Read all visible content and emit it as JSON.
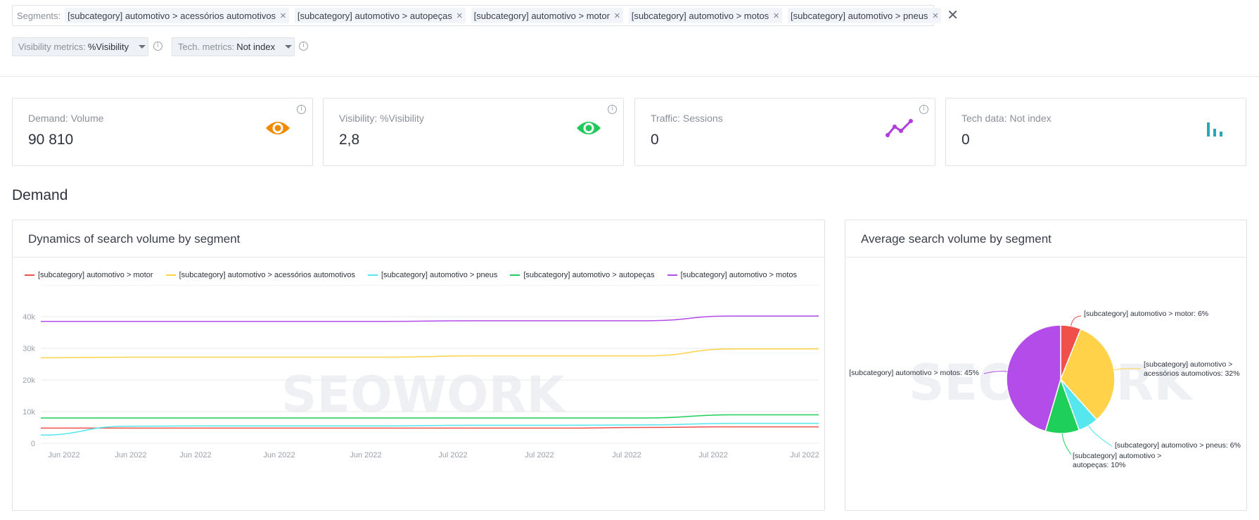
{
  "segments": {
    "label": "Segments:",
    "chips": [
      "[subcategory] automotivo > acessórios automotivos",
      "[subcategory] automotivo > autopeças",
      "[subcategory] automotivo > motor",
      "[subcategory] automotivo > motos",
      "[subcategory] automotivo > pneus"
    ]
  },
  "filters": {
    "visibility": {
      "label": "Visibility metrics:",
      "value": "%Visibility"
    },
    "tech": {
      "label": "Tech. metrics:",
      "value": "Not index"
    }
  },
  "cards": [
    {
      "label": "Demand: Volume",
      "value": "90 810",
      "icon": "eye-icon",
      "color": "#f28a00"
    },
    {
      "label": "Visibility: %Visibility",
      "value": "2,8",
      "icon": "eye-icon",
      "color": "#1fc95a"
    },
    {
      "label": "Traffic: Sessions",
      "value": "0",
      "icon": "trend-icon",
      "color": "#b23be0"
    },
    {
      "label": "Tech data: Not index",
      "value": "0",
      "icon": "bar-chart-icon",
      "color": "#2aa6b8"
    }
  ],
  "section_title": "Demand",
  "line_panel": {
    "title": "Dynamics of search volume by segment"
  },
  "pie_panel": {
    "title": "Average search volume by segment"
  },
  "watermark": "SEOWORK",
  "chart_data": [
    {
      "type": "line",
      "title": "Dynamics of search volume by segment",
      "x": [
        "Jun 2022",
        "Jun 2022",
        "Jun 2022",
        "Jun 2022",
        "Jun 2022",
        "Jul 2022",
        "Jul 2022",
        "Jul 2022",
        "Jul 2022",
        "Jul 2022"
      ],
      "x_positions": [
        0.05,
        0.155,
        0.255,
        0.385,
        0.52,
        0.655,
        0.79,
        0.925,
        1.06,
        1.18
      ],
      "ylim": [
        0,
        50000
      ],
      "yticks": [
        0,
        10000,
        20000,
        30000,
        40000
      ],
      "ytick_labels": [
        "0",
        "10k",
        "20k",
        "30k",
        "40k"
      ],
      "legend_position": "top",
      "grid": true,
      "series": [
        {
          "name": "[subcategory] automotivo > motor",
          "color": "#f0504a",
          "values": [
            4800,
            4800,
            4800,
            4800,
            4800,
            4800,
            4800,
            5000,
            5200,
            5200
          ]
        },
        {
          "name": "[subcategory] automotivo > acessórios automotivos",
          "color": "#ffd24a",
          "values": [
            27000,
            27200,
            27200,
            27200,
            27200,
            27600,
            27600,
            27600,
            29800,
            29800
          ]
        },
        {
          "name": "[subcategory] automotivo > pneus",
          "color": "#55e6ee",
          "values": [
            2600,
            5400,
            5500,
            5500,
            5500,
            5700,
            5700,
            5800,
            6300,
            6300
          ]
        },
        {
          "name": "[subcategory] automotivo > autopeças",
          "color": "#1ecf5a",
          "values": [
            8000,
            8000,
            8000,
            8000,
            8000,
            8000,
            8000,
            8000,
            9000,
            9000
          ]
        },
        {
          "name": "[subcategory] automotivo > motos",
          "color": "#b34ce8",
          "values": [
            38500,
            38500,
            38500,
            38500,
            38500,
            38700,
            38700,
            38700,
            40200,
            40200
          ]
        }
      ]
    },
    {
      "type": "pie",
      "title": "Average search volume by segment",
      "slices": [
        {
          "name": "[subcategory] automotivo > motor",
          "value": 6,
          "color": "#f0504a",
          "label": "[subcategory] automotivo > motor: 6%"
        },
        {
          "name": "[subcategory] automotivo > acessórios automotivos",
          "value": 32,
          "color": "#ffd24a",
          "label_lines": [
            "[subcategory] automotivo >",
            "acessórios automotivos: 32%"
          ]
        },
        {
          "name": "[subcategory] automotivo > pneus",
          "value": 6,
          "color": "#55e6ee",
          "label": "[subcategory] automotivo > pneus: 6%"
        },
        {
          "name": "[subcategory] automotivo > autopeças",
          "value": 10,
          "color": "#1ecf5a",
          "label_lines": [
            "[subcategory] automotivo >",
            "autopeças: 10%"
          ]
        },
        {
          "name": "[subcategory] automotivo > motos",
          "value": 45,
          "color": "#b34ce8",
          "label": "[subcategory] automotivo > motos: 45%"
        }
      ]
    }
  ]
}
